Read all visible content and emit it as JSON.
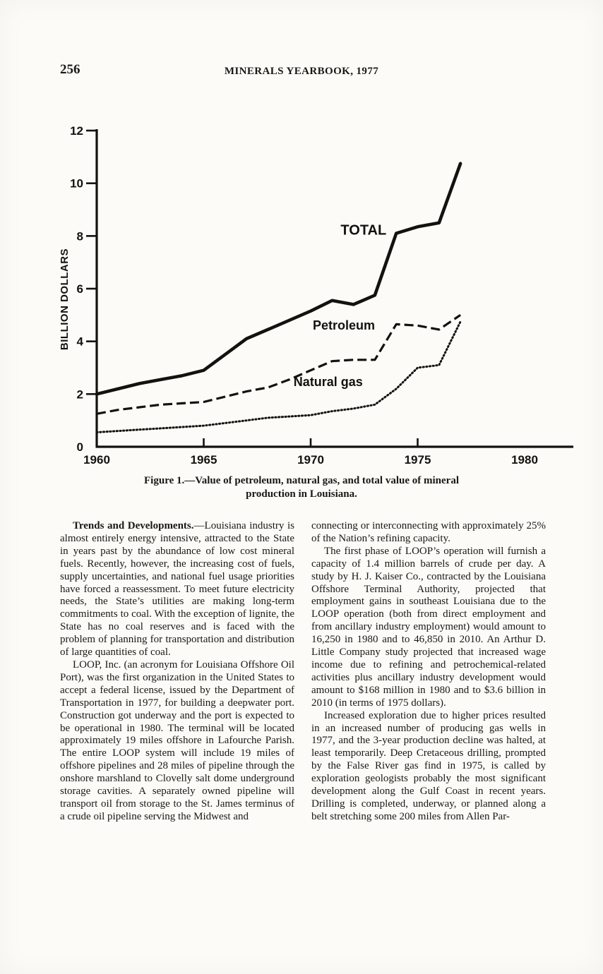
{
  "page": {
    "number": "256",
    "running_title": "MINERALS YEARBOOK, 1977"
  },
  "figure": {
    "caption_line1": "Figure 1.—Value of petroleum, natural gas, and total value of mineral",
    "caption_line2": "production in Louisiana."
  },
  "chart_data": {
    "type": "line",
    "title": "",
    "xlabel": "",
    "ylabel": "BILLION DOLLARS",
    "xlim": [
      1960,
      1980
    ],
    "ylim": [
      0,
      12
    ],
    "x_ticks": [
      1960,
      1965,
      1970,
      1975,
      1980
    ],
    "y_ticks": [
      0,
      2,
      4,
      6,
      8,
      10,
      12
    ],
    "grid": "off",
    "legend": "inline-labels",
    "series": [
      {
        "name": "TOTAL",
        "style": "solid",
        "points": [
          [
            1960,
            2.0
          ],
          [
            1961,
            2.2
          ],
          [
            1962,
            2.4
          ],
          [
            1963,
            2.55
          ],
          [
            1964,
            2.7
          ],
          [
            1965,
            2.9
          ],
          [
            1966,
            3.5
          ],
          [
            1967,
            4.1
          ],
          [
            1968,
            4.45
          ],
          [
            1969,
            4.8
          ],
          [
            1970,
            5.15
          ],
          [
            1971,
            5.55
          ],
          [
            1972,
            5.4
          ],
          [
            1973,
            5.75
          ],
          [
            1974,
            8.1
          ],
          [
            1975,
            8.35
          ],
          [
            1976,
            8.5
          ],
          [
            1977,
            10.75
          ]
        ]
      },
      {
        "name": "Petroleum",
        "style": "dashed",
        "points": [
          [
            1960,
            1.25
          ],
          [
            1961,
            1.4
          ],
          [
            1962,
            1.5
          ],
          [
            1963,
            1.6
          ],
          [
            1964,
            1.65
          ],
          [
            1965,
            1.7
          ],
          [
            1966,
            1.9
          ],
          [
            1967,
            2.1
          ],
          [
            1968,
            2.25
          ],
          [
            1969,
            2.55
          ],
          [
            1970,
            2.9
          ],
          [
            1971,
            3.25
          ],
          [
            1972,
            3.3
          ],
          [
            1973,
            3.3
          ],
          [
            1974,
            4.65
          ],
          [
            1975,
            4.6
          ],
          [
            1976,
            4.45
          ],
          [
            1977,
            5.0
          ]
        ]
      },
      {
        "name": "Natural gas",
        "style": "dotted",
        "points": [
          [
            1960,
            0.55
          ],
          [
            1961,
            0.6
          ],
          [
            1962,
            0.65
          ],
          [
            1963,
            0.7
          ],
          [
            1964,
            0.75
          ],
          [
            1965,
            0.8
          ],
          [
            1966,
            0.9
          ],
          [
            1967,
            1.0
          ],
          [
            1968,
            1.1
          ],
          [
            1969,
            1.15
          ],
          [
            1970,
            1.2
          ],
          [
            1971,
            1.35
          ],
          [
            1972,
            1.45
          ],
          [
            1973,
            1.6
          ],
          [
            1974,
            2.2
          ],
          [
            1975,
            3.0
          ],
          [
            1976,
            3.1
          ],
          [
            1977,
            4.75
          ]
        ]
      }
    ],
    "labels": [
      {
        "text": "TOTAL",
        "year": 1971.4,
        "value": 8.05,
        "size": 20
      },
      {
        "text": "Petroleum",
        "year": 1970.1,
        "value": 4.45,
        "size": 18
      },
      {
        "text": "Natural gas",
        "year": 1969.2,
        "value": 2.3,
        "size": 18
      }
    ]
  },
  "body": {
    "left": {
      "p1_lead": "Trends and Developments.",
      "p1_rest": "—Louisiana industry is almost entirely energy intensive, attracted to the State in years past by the abundance of low cost mineral fuels. Recently, however, the increasing cost of fuels, supply uncertainties, and national fuel usage priorities have forced a reassessment. To meet future electricity needs, the State’s utilities are making long-term commitments to coal. With the exception of lignite, the State has no coal reserves and is faced with the problem of planning for transportation and distribution of large quantities of coal.",
      "p2": "LOOP, Inc. (an acronym for Louisiana Offshore Oil Port), was the first organization in the United States to accept a federal license, issued by the Department of Transportation in 1977, for building a deepwater port. Construction got underway and the port is expected to be operational in 1980. The terminal will be located approximately 19 miles offshore in Lafourche Parish. The entire LOOP system will include 19 miles of offshore pipelines and 28 miles of pipeline through the onshore marshland to Clovelly salt dome underground storage cavities. A separately owned pipeline will transport oil from storage to the St. James terminus of a crude oil pipeline serving the Midwest and"
    },
    "right": {
      "p1": "connecting or interconnecting with approximately 25% of the Nation’s refining capacity.",
      "p2": "The first phase of LOOP’s operation will furnish a capacity of 1.4 million barrels of crude per day. A study by H. J. Kaiser Co., contracted by the Louisiana Offshore Terminal Authority, projected that employment gains in southeast Louisiana due to the LOOP operation (both from direct employment and from ancillary industry employment) would amount to 16,250 in 1980 and to 46,850 in 2010. An Arthur D. Little Company study projected that increased wage income due to refining and petrochemical-related activities plus ancillary industry development would amount to $168 million in 1980 and to $3.6 billion in 2010 (in terms of 1975 dollars).",
      "p3": "Increased exploration due to higher prices resulted in an increased number of producing gas wells in 1977, and the 3-year production decline was halted, at least temporarily. Deep Cretaceous drilling, prompted by the False River gas find in 1975, is called by exploration geologists probably the most significant development along the Gulf Coast in recent years. Drilling is completed, underway, or planned along a belt stretching some 200 miles from Allen Par-"
    }
  }
}
